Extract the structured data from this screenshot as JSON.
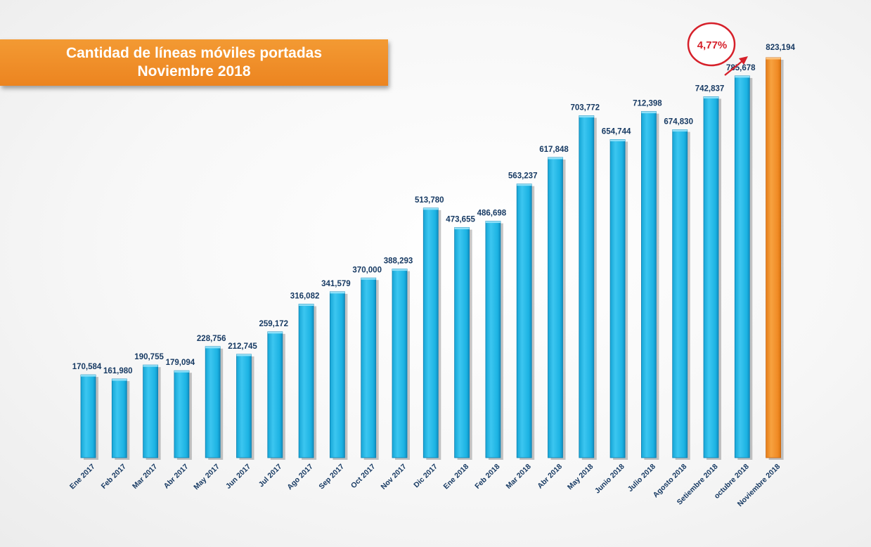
{
  "chart_data": {
    "type": "bar",
    "title": "Cantidad de líneas móviles portadas",
    "subtitle": "Noviembre 2018",
    "categories": [
      "Ene 2017",
      "Feb 2017",
      "Mar 2017",
      "Abr 2017",
      "May 2017",
      "Jun 2017",
      "Jul 2017",
      "Ago 2017",
      "Sep 2017",
      "Oct 2017",
      "Nov 2017",
      "Dic 2017",
      "Ene 2018",
      "Feb 2018",
      "Mar 2018",
      "Abr 2018",
      "May 2018",
      "Junio 2018",
      "Julio 2018",
      "Agosto 2018",
      "Setiembre 2018",
      "octubre 2018",
      "Noviembre 2018"
    ],
    "values": [
      170584,
      161980,
      190755,
      179094,
      228756,
      212745,
      259172,
      316082,
      341579,
      370000,
      388293,
      513780,
      473655,
      486698,
      563237,
      617848,
      703772,
      654744,
      712398,
      674830,
      742837,
      785678,
      823194
    ],
    "value_labels": [
      "170,584",
      "161,980",
      "190,755",
      "179,094",
      "228,756",
      "212,745",
      "259,172",
      "316,082",
      "341,579",
      "370,000",
      "388,293",
      "513,780",
      "473,655",
      "486,698",
      "563,237",
      "617,848",
      "703,772",
      "654,744",
      "712,398",
      "674,830",
      "742,837",
      "785,678",
      "823,194"
    ],
    "highlight_index": 22,
    "annotation": "4,77%",
    "xlabel": "",
    "ylabel": "",
    "ylim": [
      0,
      823194
    ]
  },
  "colors": {
    "bar": "#1cb3e3",
    "bar_dark": "#0b7fb0",
    "highlight": "#f08a24",
    "highlight_dark": "#c8650f",
    "annotation": "#d6202a"
  }
}
